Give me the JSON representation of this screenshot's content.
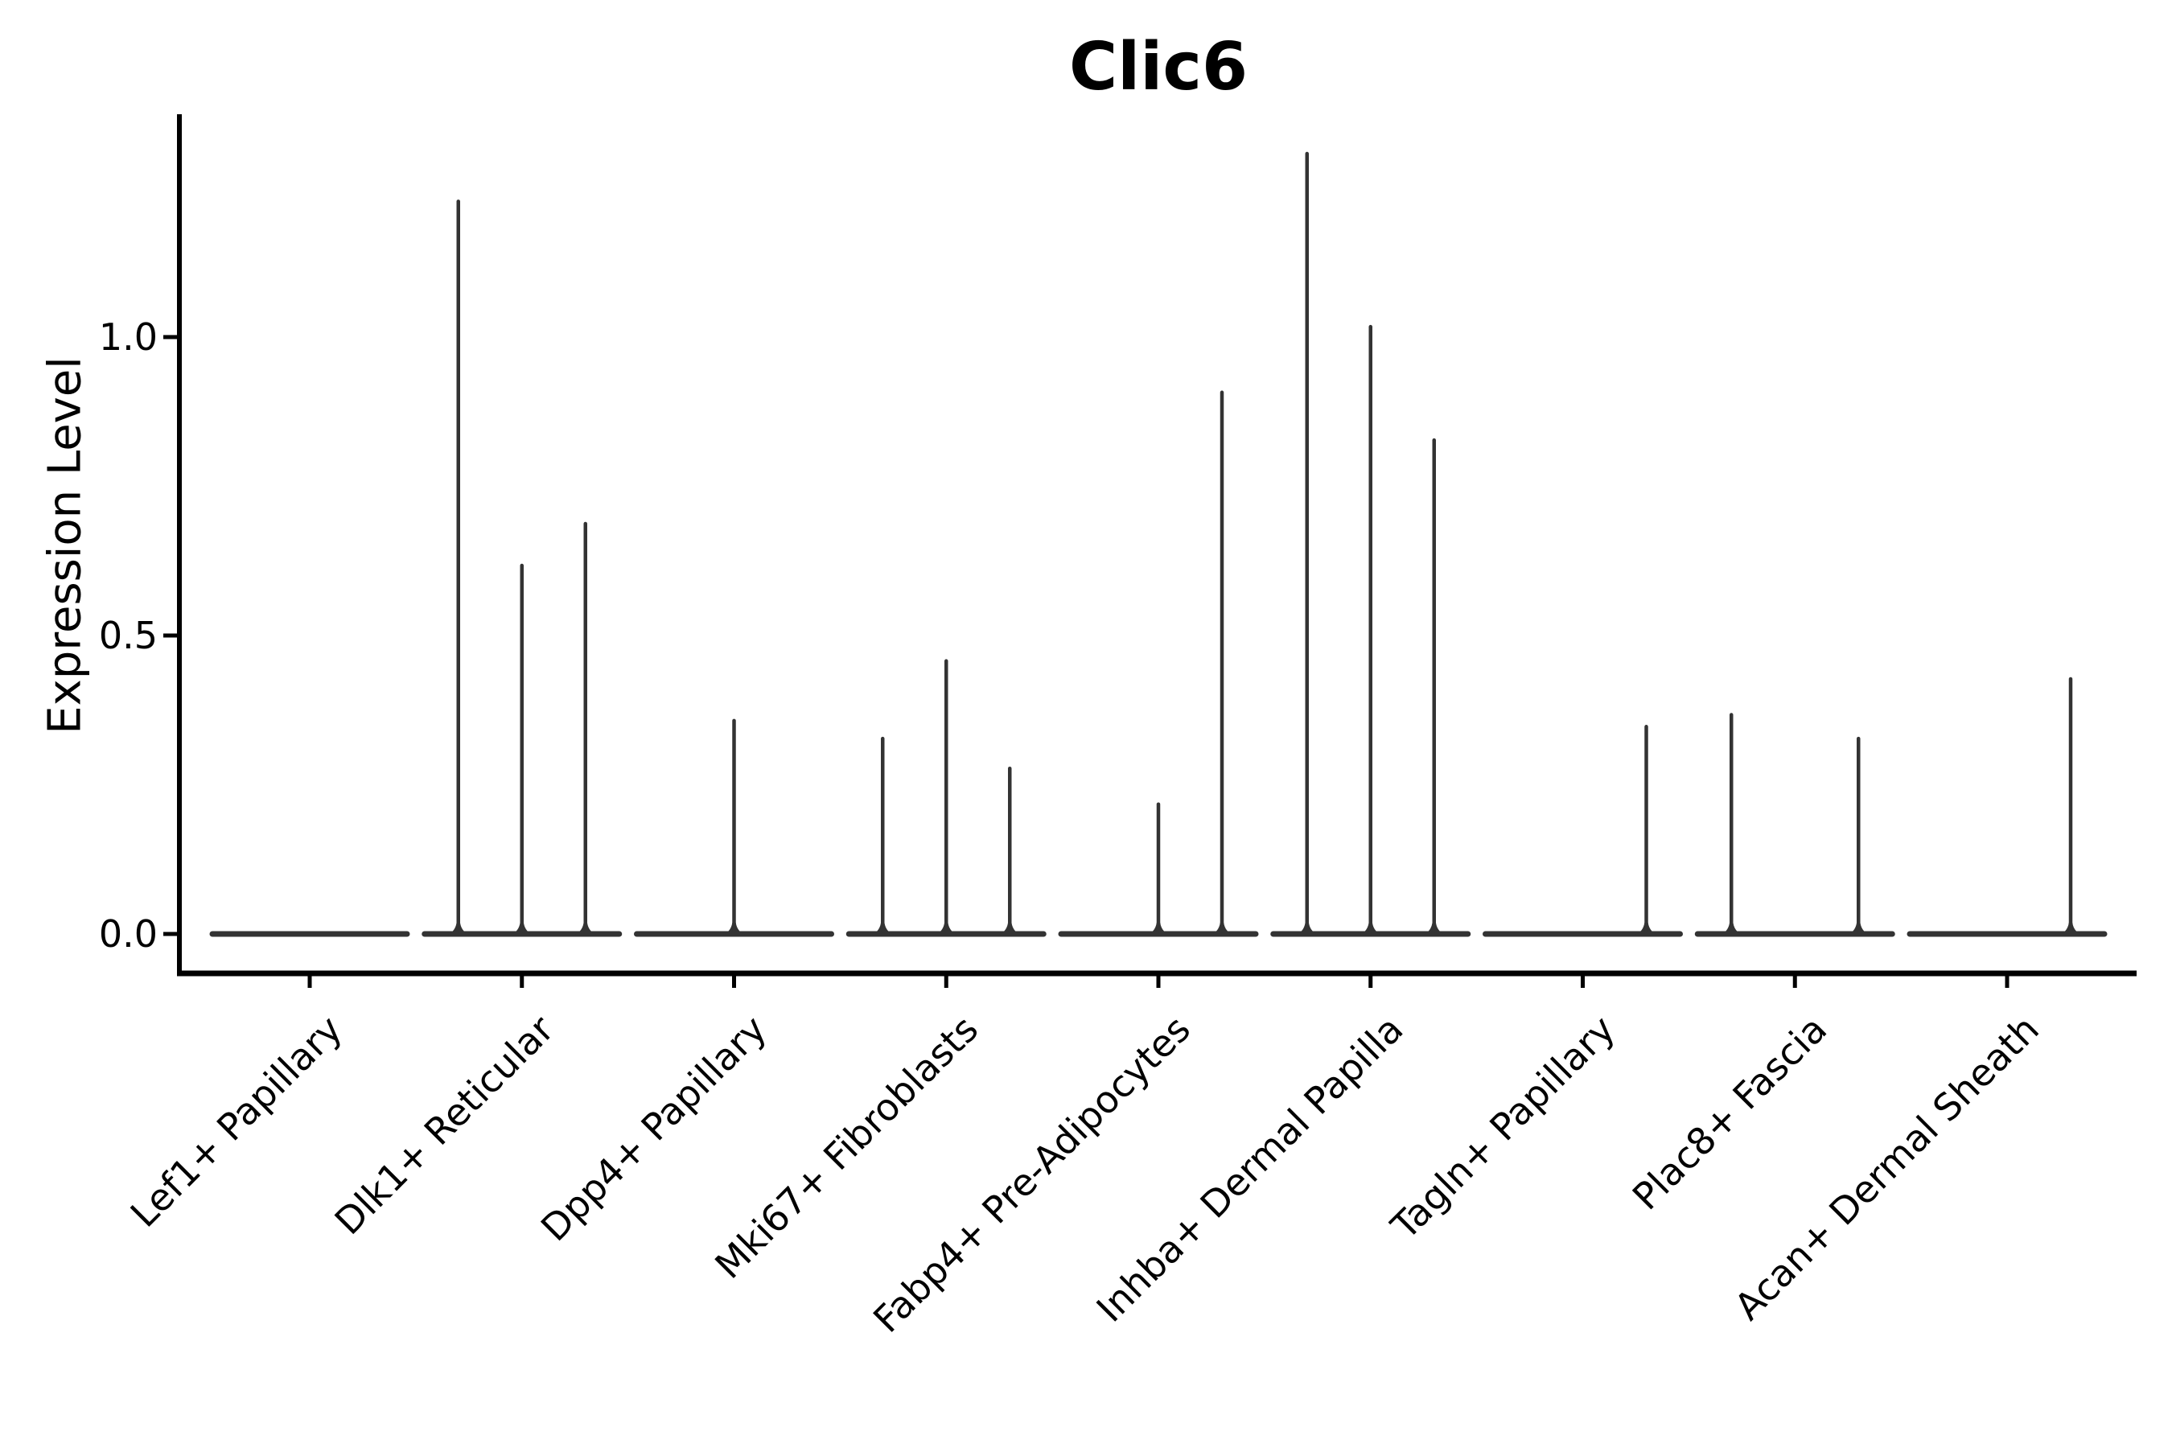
{
  "chart_data": {
    "type": "violin",
    "title": "Clic6",
    "ylabel": "Expression Level",
    "xlabel": "",
    "yticks": [
      0.0,
      0.5,
      1.0
    ],
    "ytick_labels": [
      "0.0",
      "0.5",
      "1.0"
    ],
    "ylim": [
      -0.07,
      1.37
    ],
    "grid": false,
    "legend_position": "none",
    "violin_color": "#333333",
    "axis_color": "#000000",
    "slots_per_category": 3,
    "categories": [
      "Lef1+ Papillary",
      "Dlk1+ Reticular",
      "Dpp4+ Papillary",
      "Mki67+ Fibroblasts",
      "Fabp4+ Pre-Adipocytes",
      "Inhba+ Dermal Papilla",
      "Tagln+ Papillary",
      "Plac8+ Fascia",
      "Acan+ Dermal Sheath"
    ],
    "groups": [
      {
        "category": "Lef1+ Papillary",
        "spikes": []
      },
      {
        "category": "Dlk1+ Reticular",
        "spikes": [
          {
            "slot": "left",
            "value": 1.23
          },
          {
            "slot": "mid",
            "value": 0.62
          },
          {
            "slot": "right",
            "value": 0.69
          }
        ]
      },
      {
        "category": "Dpp4+ Papillary",
        "spikes": [
          {
            "slot": "mid",
            "value": 0.36
          }
        ]
      },
      {
        "category": "Mki67+ Fibroblasts",
        "spikes": [
          {
            "slot": "left",
            "value": 0.33
          },
          {
            "slot": "mid",
            "value": 0.46
          },
          {
            "slot": "right",
            "value": 0.28
          }
        ]
      },
      {
        "category": "Fabp4+ Pre-Adipocytes",
        "spikes": [
          {
            "slot": "mid",
            "value": 0.22
          },
          {
            "slot": "right",
            "value": 0.91
          }
        ]
      },
      {
        "category": "Inhba+ Dermal Papilla",
        "spikes": [
          {
            "slot": "left",
            "value": 1.31
          },
          {
            "slot": "mid",
            "value": 1.02
          },
          {
            "slot": "right",
            "value": 0.83
          }
        ]
      },
      {
        "category": "Tagln+ Papillary",
        "spikes": [
          {
            "slot": "right",
            "value": 0.35
          }
        ]
      },
      {
        "category": "Plac8+ Fascia",
        "spikes": [
          {
            "slot": "left",
            "value": 0.37
          },
          {
            "slot": "right",
            "value": 0.33
          }
        ]
      },
      {
        "category": "Acan+ Dermal Sheath",
        "spikes": [
          {
            "slot": "right",
            "value": 0.43
          }
        ]
      }
    ]
  }
}
